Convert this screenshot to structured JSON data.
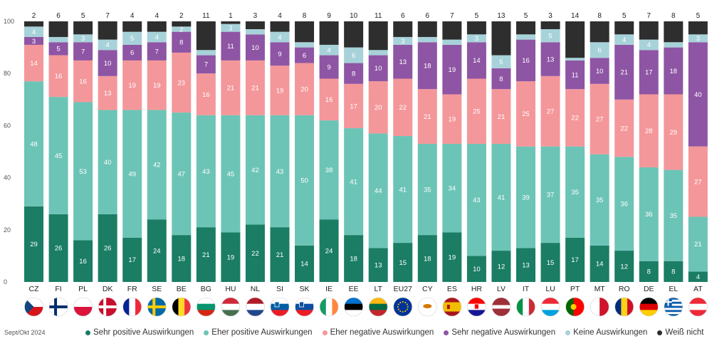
{
  "chart_data": {
    "type": "bar",
    "stacked": true,
    "categories": [
      "CZ",
      "FI",
      "PL",
      "DK",
      "FR",
      "SE",
      "BE",
      "BG",
      "HU",
      "NL",
      "SI",
      "SK",
      "IE",
      "EE",
      "LT",
      "EU27",
      "CY",
      "ES",
      "HR",
      "LV",
      "IT",
      "LU",
      "PT",
      "MT",
      "RO",
      "DE",
      "EL",
      "AT"
    ],
    "series": [
      {
        "name": "Sehr positive Auswirkungen",
        "color": "#1a7d64",
        "values": [
          29,
          26,
          16,
          26,
          17,
          24,
          18,
          21,
          19,
          22,
          21,
          14,
          24,
          18,
          13,
          15,
          18,
          19,
          10,
          12,
          13,
          15,
          17,
          14,
          12,
          8,
          8,
          4
        ]
      },
      {
        "name": "Eher positive Auswirkungen",
        "color": "#6cc4b6",
        "values": [
          48,
          45,
          53,
          40,
          49,
          42,
          47,
          43,
          45,
          42,
          43,
          50,
          38,
          41,
          44,
          41,
          35,
          34,
          43,
          41,
          39,
          37,
          35,
          35,
          36,
          36,
          35,
          21
        ]
      },
      {
        "name": "Eher negative Auswirkungen",
        "color": "#f4979a",
        "values": [
          14,
          16,
          16,
          13,
          19,
          19,
          23,
          16,
          21,
          21,
          19,
          20,
          16,
          17,
          20,
          22,
          21,
          19,
          25,
          21,
          25,
          27,
          22,
          27,
          22,
          28,
          29,
          27
        ]
      },
      {
        "name": "Sehr negative Auswirkungen",
        "color": "#8e55a4",
        "values": [
          3,
          5,
          7,
          10,
          6,
          7,
          8,
          7,
          11,
          10,
          9,
          6,
          9,
          8,
          10,
          13,
          18,
          19,
          14,
          8,
          16,
          13,
          11,
          10,
          21,
          17,
          18,
          40
        ]
      },
      {
        "name": "Keine Auswirkungen",
        "color": "#a7d2d9",
        "values": [
          4,
          2,
          3,
          4,
          5,
          4,
          2,
          2,
          3,
          2,
          4,
          2,
          4,
          6,
          2,
          3,
          2,
          2,
          3,
          5,
          2,
          5,
          1,
          6,
          4,
          4,
          2,
          3
        ]
      },
      {
        "name": "Weiß nicht",
        "color": "#2e2e2e",
        "values": [
          2,
          6,
          5,
          7,
          4,
          4,
          2,
          11,
          1,
          3,
          4,
          8,
          9,
          10,
          11,
          6,
          6,
          7,
          5,
          13,
          5,
          3,
          14,
          8,
          5,
          7,
          8,
          5
        ]
      }
    ],
    "hidden_segment_labels": {
      "Keine Auswirkungen": [
        "FI",
        "BG",
        "NL",
        "SK",
        "LT",
        "CY",
        "ES",
        "IT",
        "PT",
        "EL"
      ]
    },
    "ylim": [
      0,
      100
    ],
    "yticks": [
      0,
      20,
      40,
      60,
      80,
      100
    ],
    "grid": false,
    "legend_position": "bottom",
    "footnote": "Sept/Okt 2024"
  },
  "flags": {
    "CZ": [
      "#d7141a",
      "#ffffff",
      "#11457e"
    ],
    "FI": [
      "#ffffff",
      "#002f6c"
    ],
    "PL": [
      "#ffffff",
      "#dc143c"
    ],
    "DK": [
      "#c8102e",
      "#ffffff"
    ],
    "FR": [
      "#002395",
      "#ffffff",
      "#ed2939"
    ],
    "SE": [
      "#006aa7",
      "#fecc00"
    ],
    "BE": [
      "#000000",
      "#fdda24",
      "#ef3340"
    ],
    "BG": [
      "#ffffff",
      "#00966e",
      "#d62612"
    ],
    "HU": [
      "#ce2939",
      "#ffffff",
      "#477050"
    ],
    "NL": [
      "#ae1c28",
      "#ffffff",
      "#21468b"
    ],
    "SI": [
      "#ffffff",
      "#005da4",
      "#ed1c24"
    ],
    "SK": [
      "#ffffff",
      "#0b4ea2",
      "#ee1c25"
    ],
    "IE": [
      "#169b62",
      "#ffffff",
      "#ff883e"
    ],
    "EE": [
      "#0072ce",
      "#000000",
      "#ffffff"
    ],
    "LT": [
      "#fdb913",
      "#006a44",
      "#c1272d"
    ],
    "EU27": [
      "#003399",
      "#ffcc00"
    ],
    "CY": [
      "#ffffff",
      "#d57800"
    ],
    "ES": [
      "#aa151b",
      "#f1bf00"
    ],
    "HR": [
      "#ff0000",
      "#ffffff",
      "#171796"
    ],
    "LV": [
      "#9e3039",
      "#ffffff"
    ],
    "IT": [
      "#009246",
      "#ffffff",
      "#ce2b37"
    ],
    "LU": [
      "#ed2939",
      "#ffffff",
      "#00a1de"
    ],
    "PT": [
      "#006600",
      "#ff0000",
      "#ffcc00"
    ],
    "MT": [
      "#ffffff",
      "#cf142b"
    ],
    "RO": [
      "#002b7f",
      "#fcd116",
      "#ce1126"
    ],
    "DE": [
      "#000000",
      "#dd0000",
      "#ffce00"
    ],
    "EL": [
      "#0d5eaf",
      "#ffffff"
    ],
    "AT": [
      "#ed2939",
      "#ffffff"
    ]
  }
}
